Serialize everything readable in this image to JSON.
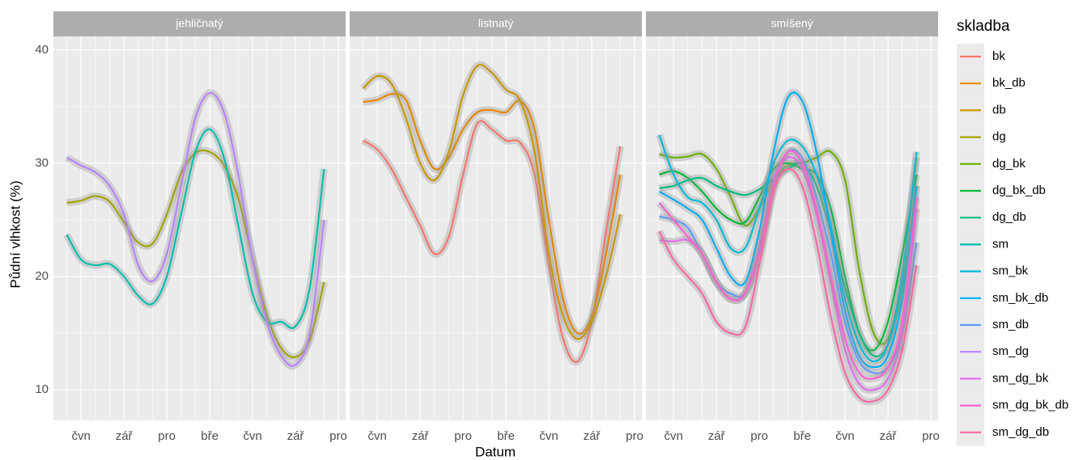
{
  "chart_data": {
    "type": "line",
    "x_label": "Datum",
    "y_label": "Půdní vlhkost (%)",
    "legend_title": "skladba",
    "facets": [
      "jehličnatý",
      "listnatý",
      "smíšený"
    ],
    "categories": [
      null,
      "čvn",
      null,
      null,
      "zář",
      null,
      null,
      "pro",
      null,
      null,
      "bře",
      null,
      null,
      "čvn",
      null,
      null,
      "zář",
      null,
      null,
      "pro"
    ],
    "ylim": [
      7.3,
      41.2
    ],
    "yticks": [
      10,
      20,
      30,
      40
    ],
    "grid": true,
    "series": [
      {
        "name": "bk",
        "color": "#F8766D",
        "facet": "listnatý",
        "values": [
          32,
          31.2,
          29.5,
          27,
          24.5,
          22,
          23.5,
          29,
          33.5,
          33,
          32,
          31.8,
          29,
          21,
          14.5,
          12.5,
          16,
          24,
          31.5,
          null
        ]
      },
      {
        "name": "bk_db",
        "color": "#E58700",
        "facet": "listnatý",
        "values": [
          35.4,
          35.6,
          36.1,
          35.6,
          32,
          29.5,
          30.5,
          33,
          34.5,
          34.7,
          34.5,
          35.5,
          33,
          25,
          18,
          15,
          16.5,
          22,
          29,
          null
        ]
      },
      {
        "name": "db",
        "color": "#C99800",
        "facet": "listnatý",
        "values": [
          36.6,
          37.7,
          37,
          34,
          30,
          28.5,
          31,
          36,
          38.6,
          38,
          36.5,
          35.5,
          31,
          22,
          16.5,
          14.5,
          16,
          20,
          25.5,
          null
        ]
      },
      {
        "name": "dg",
        "color": "#A3A500",
        "facet": "jehličnatý",
        "values": [
          26.5,
          26.7,
          27.1,
          26.6,
          24.8,
          23,
          22.9,
          25.5,
          29.1,
          30.9,
          31,
          29.8,
          26.9,
          21.6,
          16.6,
          13.7,
          12.9,
          14.4,
          19.5,
          null
        ]
      },
      {
        "name": "dg_bk",
        "color": "#6BB100",
        "facet": "smíšený",
        "values": [
          30.8,
          30.5,
          30.6,
          30.8,
          29.5,
          27,
          24.5,
          26,
          28.5,
          29.8,
          30,
          30.5,
          31,
          28.5,
          20.5,
          15,
          14.5,
          20,
          30.5,
          null
        ]
      },
      {
        "name": "dg_bk_db",
        "color": "#00BA38",
        "facet": "smíšený",
        "values": [
          29,
          29.3,
          28.7,
          27.5,
          26,
          25,
          24.8,
          27,
          29.5,
          30,
          29.5,
          29,
          26,
          20,
          15,
          13.5,
          16,
          22,
          29,
          null
        ]
      },
      {
        "name": "dg_db",
        "color": "#00BF7D",
        "facet": "smíšený",
        "values": [
          27.8,
          28,
          28.5,
          28.7,
          28,
          27.5,
          27.2,
          27.7,
          28.6,
          29.5,
          30,
          28,
          24,
          19,
          15,
          13,
          14,
          19,
          28,
          null
        ]
      },
      {
        "name": "sm",
        "color": "#00C0AF",
        "facet": "jehličnatý",
        "values": [
          23.7,
          21.5,
          21,
          21.1,
          20,
          18.3,
          17.6,
          20,
          25.5,
          31,
          33,
          30.5,
          24.5,
          18.5,
          16,
          16,
          15.6,
          19,
          29.5,
          null
        ]
      },
      {
        "name": "sm_bk",
        "color": "#00BCD8",
        "facet": "smíšený",
        "values": [
          32.5,
          29,
          27,
          26.5,
          25,
          22.5,
          22.5,
          26,
          30,
          32,
          31.5,
          29,
          24.5,
          18,
          14,
          12.5,
          14,
          20,
          31,
          null
        ]
      },
      {
        "name": "sm_bk_db",
        "color": "#00B0F6",
        "facet": "smíšený",
        "values": [
          27.5,
          26.8,
          26,
          25,
          22.5,
          20,
          19.5,
          24,
          31,
          35.8,
          35.5,
          31,
          24,
          17,
          13,
          12,
          13,
          18,
          28,
          null
        ]
      },
      {
        "name": "sm_db",
        "color": "#619CFF",
        "facet": "smíšený",
        "values": [
          25.3,
          25,
          24.3,
          22,
          19.5,
          18.5,
          18.5,
          22,
          28,
          31,
          30.5,
          27,
          22,
          16,
          12.5,
          11.5,
          12,
          15,
          23,
          null
        ]
      },
      {
        "name": "sm_dg",
        "color": "#B983FF",
        "facet": "jehličnatý",
        "values": [
          30.5,
          29.8,
          29.2,
          28,
          25.5,
          21,
          19.6,
          22,
          28,
          34,
          36.2,
          34.5,
          29,
          21.5,
          16,
          13,
          12.2,
          15,
          25,
          null
        ]
      },
      {
        "name": "sm_dg_bk",
        "color": "#E76BF3",
        "facet": "smíšený",
        "values": [
          23.2,
          23.1,
          23.2,
          22,
          19.5,
          18,
          18.5,
          22.5,
          28.5,
          30.5,
          29.5,
          25.5,
          19.5,
          13.5,
          10.5,
          10,
          11,
          15,
          26,
          null
        ]
      },
      {
        "name": "sm_dg_bk_db",
        "color": "#FD61D1",
        "facet": "smíšený",
        "values": [
          26.5,
          25,
          23.5,
          22,
          19.5,
          18,
          18.5,
          22,
          28,
          31,
          30,
          26,
          20,
          14.5,
          11.5,
          11,
          12,
          16,
          27,
          null
        ]
      },
      {
        "name": "sm_dg_db",
        "color": "#FF67A4",
        "facet": "smíšený",
        "values": [
          24,
          21.5,
          20,
          18.5,
          16,
          15,
          15.5,
          21,
          27.5,
          29.5,
          28,
          23,
          16.5,
          11.5,
          9.3,
          9,
          10,
          13.5,
          21,
          null
        ]
      }
    ]
  }
}
